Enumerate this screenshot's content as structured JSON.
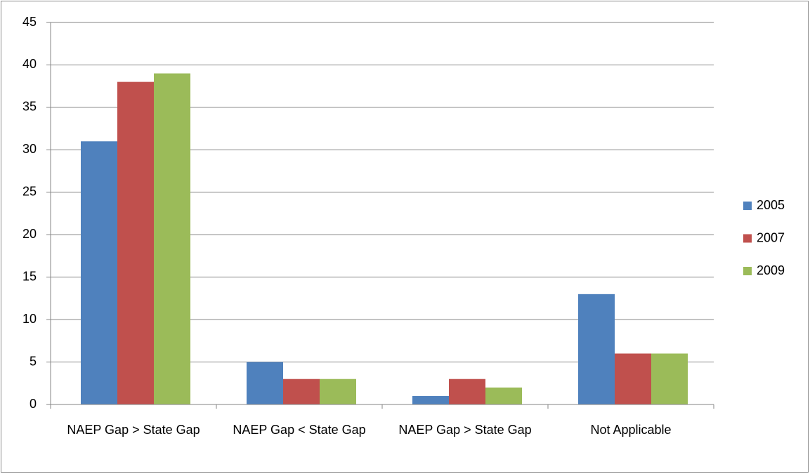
{
  "chart_data": {
    "type": "bar",
    "categories": [
      "NAEP Gap > State Gap",
      "NAEP Gap < State Gap",
      "NAEP Gap > State Gap",
      "Not Applicable"
    ],
    "series": [
      {
        "name": "2005",
        "color": "#4f81bd",
        "values": [
          31,
          5,
          1,
          13
        ]
      },
      {
        "name": "2007",
        "color": "#c0504d",
        "values": [
          38,
          3,
          3,
          6
        ]
      },
      {
        "name": "2009",
        "color": "#9bbb59",
        "values": [
          39,
          3,
          2,
          6
        ]
      }
    ],
    "ylim": [
      0,
      45
    ],
    "yticks": [
      0,
      5,
      10,
      15,
      20,
      25,
      30,
      35,
      40,
      45
    ],
    "grid": true,
    "legend": "right"
  }
}
